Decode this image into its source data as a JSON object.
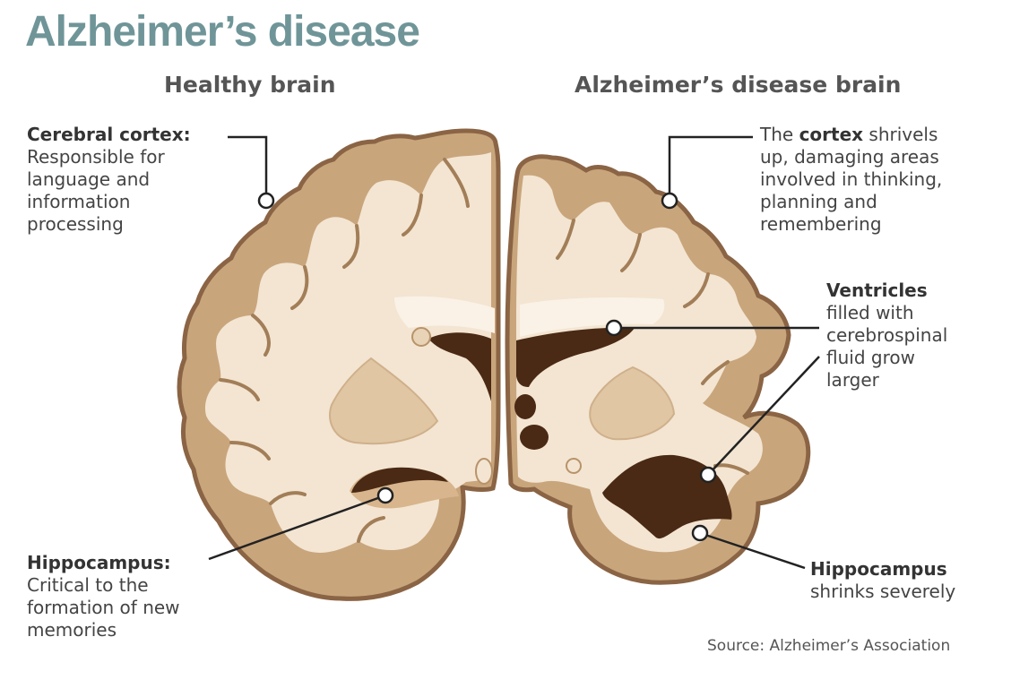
{
  "title": "Alzheimer’s disease",
  "healthy": {
    "heading": "Healthy brain",
    "cortex": {
      "label": "Cerebral cortex:",
      "text": [
        "Responsible for",
        "language and",
        "information",
        "processing"
      ]
    },
    "hippocampus": {
      "label": "Hippocampus:",
      "text": [
        "Critical to the",
        "formation of new",
        "memories"
      ]
    }
  },
  "disease": {
    "heading": "Alzheimer’s disease brain",
    "cortex": {
      "pre": "The ",
      "bold": "cortex",
      "post": " shrivels",
      "lines": [
        "up, damaging areas",
        "involved in thinking,",
        "planning and",
        "remembering"
      ]
    },
    "ventricles": {
      "label": "Ventricles",
      "text": [
        "filled with",
        "cerebrospinal",
        "fluid grow",
        "larger"
      ]
    },
    "hippocampus": {
      "label": "Hippocampus",
      "text": [
        "shrinks severely"
      ]
    }
  },
  "source": "Source: Alzheimer’s Association",
  "colors": {
    "title": "#6f9598",
    "brain_outline": "#8a6444",
    "cortex_fill": "#c9a57c",
    "white_matter": "#f3e5d2",
    "ventricle": "#4a2a15",
    "leader_line": "#222222"
  }
}
